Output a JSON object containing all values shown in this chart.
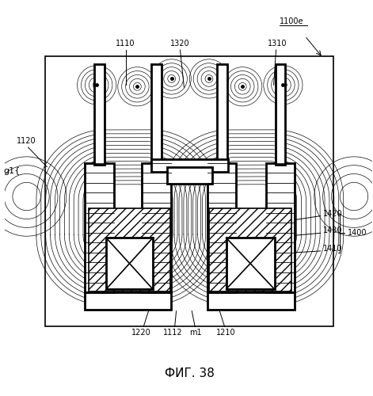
{
  "fig_title": "ФИГ. 38",
  "patent_label": "1100e",
  "bg_color": "#ffffff",
  "lw_thin": 0.6,
  "lw_medium": 1.2,
  "lw_thick": 2.0,
  "fig_width": 4.71,
  "fig_height": 5.0,
  "dpi": 100
}
